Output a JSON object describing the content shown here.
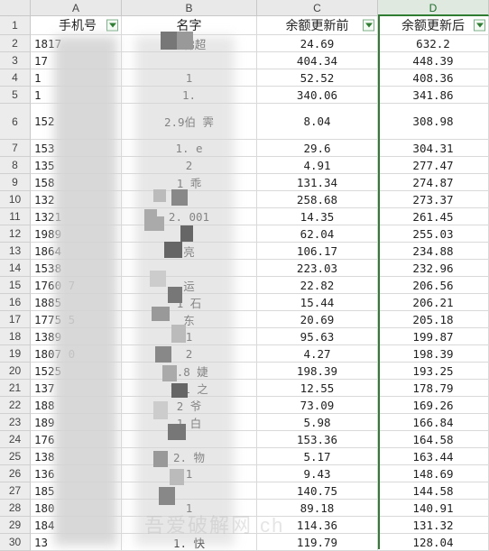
{
  "columns": [
    {
      "letter": "A",
      "header": "手机号",
      "filter": true
    },
    {
      "letter": "B",
      "header": "名字",
      "filter": false
    },
    {
      "letter": "C",
      "header": "余额更新前",
      "filter": true
    },
    {
      "letter": "D",
      "header": "余额更新后",
      "filter": true
    }
  ],
  "rows": [
    {
      "n": "1",
      "a": "",
      "b": "",
      "c": "",
      "d": ""
    },
    {
      "n": "2",
      "a": "1817",
      "b": "三梯超",
      "c": "24.69",
      "d": "632.2"
    },
    {
      "n": "3",
      "a": "17",
      "b": "",
      "c": "404.34",
      "d": "448.39"
    },
    {
      "n": "4",
      "a": "1",
      "b": "1",
      "c": "52.52",
      "d": "408.36"
    },
    {
      "n": "5",
      "a": "1",
      "b": "1.",
      "c": "340.06",
      "d": "341.86"
    },
    {
      "n": "6",
      "a": "152",
      "b": "2.9伯 霁",
      "c": "8.04",
      "d": "308.98"
    },
    {
      "n": "7",
      "a": "153",
      "b": "1. e",
      "c": "29.6",
      "d": "304.31"
    },
    {
      "n": "8",
      "a": "135",
      "b": "2",
      "c": "4.91",
      "d": "277.47"
    },
    {
      "n": "9",
      "a": "158",
      "b": "1 乖",
      "c": "131.34",
      "d": "274.87"
    },
    {
      "n": "10",
      "a": "132",
      "b": "",
      "c": "258.68",
      "d": "273.37"
    },
    {
      "n": "11",
      "a": "1321",
      "b": "2. 001",
      "c": "14.35",
      "d": "261.45"
    },
    {
      "n": "12",
      "a": "1989",
      "b": "",
      "c": "62.04",
      "d": "255.03"
    },
    {
      "n": "13",
      "a": "1864",
      "b": "亮",
      "c": "106.17",
      "d": "234.88"
    },
    {
      "n": "14",
      "a": "1538",
      "b": "",
      "c": "223.03",
      "d": "232.96"
    },
    {
      "n": "15",
      "a": "1760 7",
      "b": "运",
      "c": "22.82",
      "d": "206.56"
    },
    {
      "n": "16",
      "a": "1885",
      "b": "1 石",
      "c": "15.44",
      "d": "206.21"
    },
    {
      "n": "17",
      "a": "1775 5",
      "b": "东",
      "c": "20.69",
      "d": "205.18"
    },
    {
      "n": "18",
      "a": "1389",
      "b": "1",
      "c": "95.63",
      "d": "199.87"
    },
    {
      "n": "19",
      "a": "1807 0",
      "b": "2",
      "c": "4.27",
      "d": "198.39"
    },
    {
      "n": "20",
      "a": "1525",
      "b": "2.8 婕",
      "c": "198.39",
      "d": "193.25"
    },
    {
      "n": "21",
      "a": "137",
      "b": "1.1 之",
      "c": "12.55",
      "d": "178.79"
    },
    {
      "n": "22",
      "a": "188",
      "b": "2 爷",
      "c": "73.09",
      "d": "169.26"
    },
    {
      "n": "23",
      "a": "189",
      "b": "1 白",
      "c": "5.98",
      "d": "166.84"
    },
    {
      "n": "24",
      "a": "176",
      "b": "",
      "c": "153.36",
      "d": "164.58"
    },
    {
      "n": "25",
      "a": "138",
      "b": "2. 物",
      "c": "5.17",
      "d": "163.44"
    },
    {
      "n": "26",
      "a": "136",
      "b": "1",
      "c": "9.43",
      "d": "148.69"
    },
    {
      "n": "27",
      "a": "185",
      "b": "",
      "c": "140.75",
      "d": "144.58"
    },
    {
      "n": "28",
      "a": "180",
      "b": "1",
      "c": "89.18",
      "d": "140.91"
    },
    {
      "n": "29",
      "a": "184",
      "b": "",
      "c": "114.36",
      "d": "131.32"
    },
    {
      "n": "30",
      "a": "13",
      "b": "1. 快",
      "c": "119.79",
      "d": "128.04"
    }
  ],
  "watermark": "吾爱破解网 ch"
}
